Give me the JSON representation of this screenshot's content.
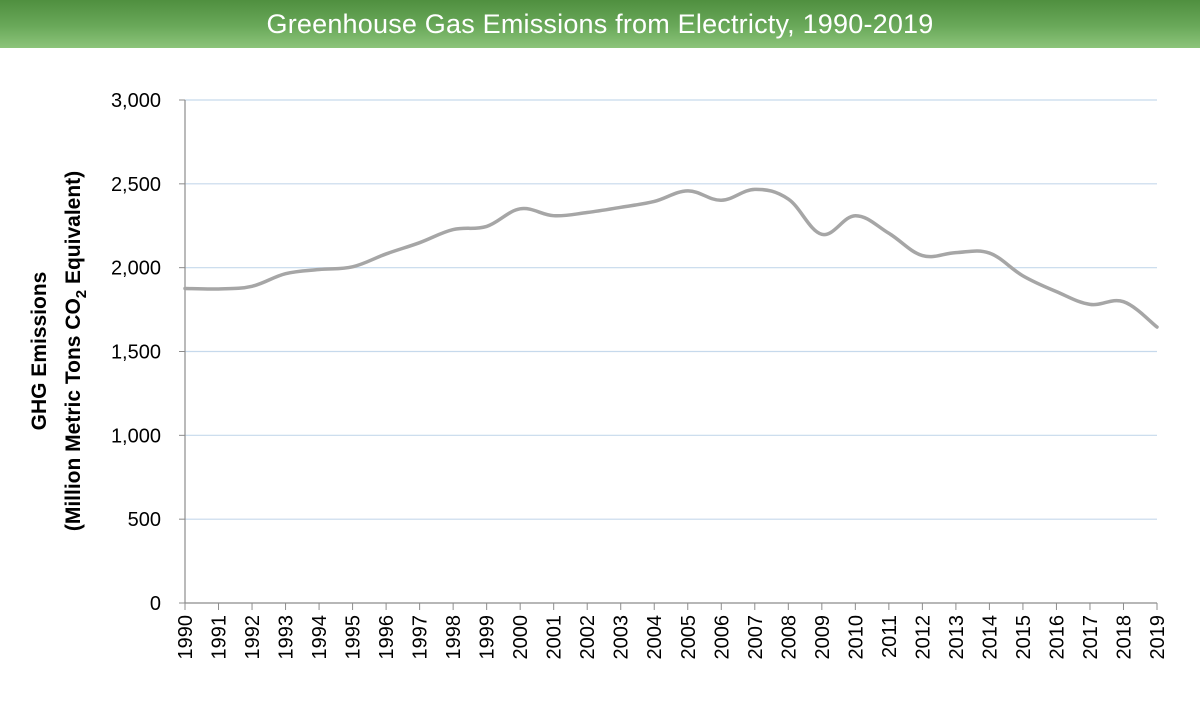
{
  "chart_data": {
    "type": "line",
    "title": "Greenhouse Gas Emissions from Electricty, 1990-2019",
    "ylabel_line1": "GHG Emissions",
    "ylabel_line2": {
      "prefix": "(Million Metric Tons CO",
      "subscript": "2",
      "suffix": " Equivalent)"
    },
    "xlabel": "",
    "ylim": [
      0,
      3000
    ],
    "yticks": [
      0,
      500,
      1000,
      1500,
      2000,
      2500,
      3000
    ],
    "ytick_labels": [
      "0",
      "500",
      "1,000",
      "1,500",
      "2,000",
      "2,500",
      "3,000"
    ],
    "grid": true,
    "legend": "none",
    "line_color": "#a6a6a6",
    "grid_color": "#c6d9ec",
    "categories": [
      "1990",
      "1991",
      "1992",
      "1993",
      "1994",
      "1995",
      "1996",
      "1997",
      "1998",
      "1999",
      "2000",
      "2001",
      "2002",
      "2003",
      "2004",
      "2005",
      "2006",
      "2007",
      "2008",
      "2009",
      "2010",
      "2011",
      "2012",
      "2013",
      "2014",
      "2015",
      "2016",
      "2017",
      "2018",
      "2019"
    ],
    "series": [
      {
        "values": [
          1876,
          1873,
          1889,
          1964,
          1989,
          2005,
          2082,
          2149,
          2227,
          2246,
          2351,
          2310,
          2329,
          2360,
          2395,
          2458,
          2402,
          2467,
          2409,
          2199,
          2310,
          2205,
          2072,
          2090,
          2087,
          1951,
          1857,
          1781,
          1797,
          1646
        ]
      }
    ]
  }
}
